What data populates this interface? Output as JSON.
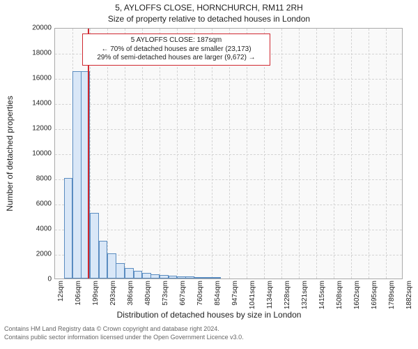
{
  "title": "5, AYLOFFS CLOSE, HORNCHURCH, RM11 2RH",
  "subtitle": "Size of property relative to detached houses in London",
  "y_axis": {
    "label": "Number of detached properties",
    "ticks": [
      0,
      2000,
      4000,
      6000,
      8000,
      10000,
      12000,
      14000,
      16000,
      18000,
      20000
    ],
    "max": 20000
  },
  "x_axis": {
    "label": "Distribution of detached houses by size in London",
    "ticks": [
      "12sqm",
      "106sqm",
      "199sqm",
      "293sqm",
      "386sqm",
      "480sqm",
      "573sqm",
      "667sqm",
      "760sqm",
      "854sqm",
      "947sqm",
      "1041sqm",
      "1134sqm",
      "1228sqm",
      "1321sqm",
      "1415sqm",
      "1508sqm",
      "1602sqm",
      "1695sqm",
      "1789sqm",
      "1882sqm"
    ]
  },
  "chart": {
    "type": "histogram",
    "xlim": [
      12,
      1882
    ],
    "ylim": [
      0,
      20000
    ],
    "background_color": "#f9f9f9",
    "grid_color": "#d4d4d4",
    "bar_fill": "#d9e7f7",
    "bar_border": "#5a8cc0",
    "bars_x": [
      59,
      106,
      152,
      199,
      246,
      293,
      339,
      386,
      433,
      480,
      526,
      573,
      620,
      667,
      713,
      760,
      807,
      854
    ],
    "bar_width_sqm": 47,
    "bars_y": [
      8000,
      16500,
      16500,
      5200,
      3000,
      2000,
      1200,
      850,
      600,
      450,
      350,
      280,
      220,
      180,
      140,
      110,
      90,
      70
    ],
    "marker": {
      "x_sqm": 187,
      "color": "#d02830"
    }
  },
  "annotation": {
    "lines": [
      "5 AYLOFFS CLOSE: 187sqm",
      "← 70% of detached houses are smaller (23,173)",
      "29% of semi-detached houses are larger (9,672) →"
    ],
    "border_color": "#d02830",
    "background": "#ffffff",
    "font_size": 10
  },
  "footer": {
    "line1": "Contains HM Land Registry data © Crown copyright and database right 2024.",
    "line2": "Contains public sector information licensed under the Open Government Licence v3.0."
  }
}
